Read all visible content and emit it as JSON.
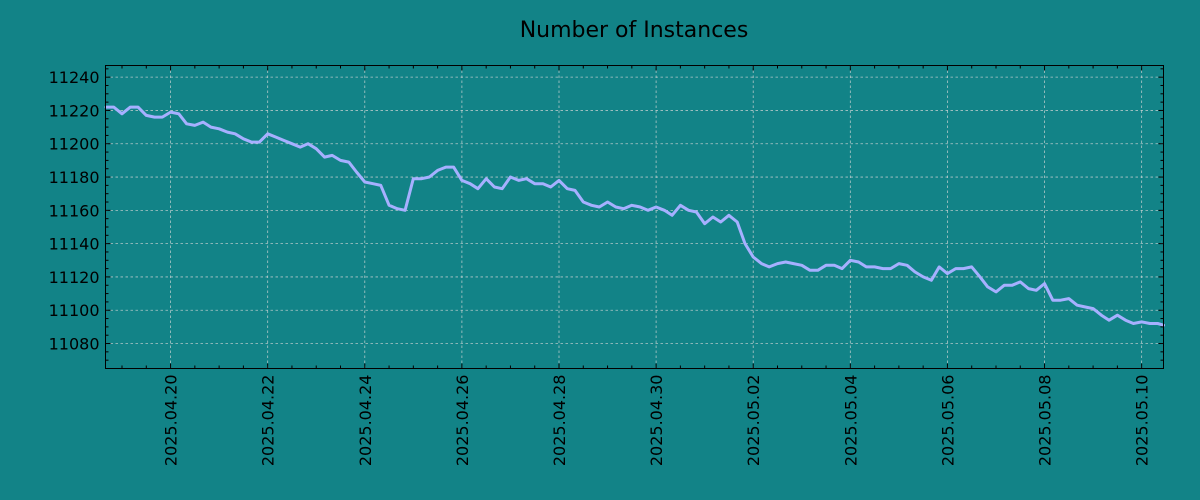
{
  "chart_data": {
    "type": "line",
    "title": "Number of Instances",
    "xlabel": "",
    "ylabel": "",
    "grid": true,
    "x_tick_labels": [
      "2025.04.20",
      "2025.04.22",
      "2025.04.24",
      "2025.04.26",
      "2025.04.28",
      "2025.04.30",
      "2025.05.02",
      "2025.05.04",
      "2025.05.06",
      "2025.05.08",
      "2025.05.10"
    ],
    "y_tick_labels": [
      "11080",
      "11100",
      "11120",
      "11140",
      "11160",
      "11180",
      "11200",
      "11220",
      "11240"
    ],
    "xlim": [
      18.66,
      40.45
    ],
    "ylim": [
      11065,
      11247
    ],
    "series": [
      {
        "color": "#a6b0ff",
        "x": [
          18.67,
          18.83,
          19.0,
          19.17,
          19.33,
          19.5,
          19.67,
          19.83,
          20.0,
          20.17,
          20.33,
          20.5,
          20.67,
          20.83,
          21.0,
          21.17,
          21.33,
          21.5,
          21.67,
          21.83,
          22.0,
          22.17,
          22.33,
          22.5,
          22.67,
          22.83,
          23.0,
          23.17,
          23.33,
          23.5,
          23.67,
          23.83,
          24.0,
          24.17,
          24.33,
          24.5,
          24.67,
          24.83,
          25.0,
          25.17,
          25.33,
          25.5,
          25.67,
          25.83,
          26.0,
          26.17,
          26.33,
          26.5,
          26.67,
          26.83,
          27.0,
          27.17,
          27.33,
          27.5,
          27.67,
          27.83,
          28.0,
          28.17,
          28.33,
          28.5,
          28.67,
          28.83,
          29.0,
          29.17,
          29.33,
          29.5,
          29.67,
          29.83,
          30.0,
          30.17,
          30.33,
          30.5,
          30.67,
          30.83,
          31.0,
          31.17,
          31.33,
          31.5,
          31.67,
          31.83,
          32.0,
          32.17,
          32.33,
          32.5,
          32.67,
          32.83,
          33.0,
          33.17,
          33.33,
          33.5,
          33.67,
          33.83,
          34.0,
          34.17,
          34.33,
          34.5,
          34.67,
          34.83,
          35.0,
          35.17,
          35.33,
          35.5,
          35.67,
          35.83,
          36.0,
          36.17,
          36.33,
          36.5,
          36.67,
          36.83,
          37.0,
          37.17,
          37.33,
          37.5,
          37.67,
          37.83,
          38.0,
          38.17,
          38.33,
          38.5,
          38.67,
          38.83,
          39.0,
          39.17,
          39.33,
          39.5,
          39.67,
          39.83,
          40.0,
          40.17,
          40.33,
          40.45
        ],
        "y": [
          11222,
          11222,
          11218,
          11222,
          11222,
          11217,
          11216,
          11216,
          11219,
          11218,
          11212,
          11211,
          11213,
          11210,
          11209,
          11207,
          11206,
          11203,
          11201,
          11201,
          11206,
          11204,
          11202,
          11200,
          11198,
          11200,
          11197,
          11192,
          11193,
          11190,
          11189,
          11183,
          11177,
          11176,
          11175,
          11163,
          11161,
          11160,
          11179,
          11179,
          11180,
          11184,
          11186,
          11186,
          11178,
          11176,
          11173,
          11179,
          11174,
          11173,
          11180,
          11178,
          11179,
          11176,
          11176,
          11174,
          11178,
          11173,
          11172,
          11165,
          11163,
          11162,
          11165,
          11162,
          11161,
          11163,
          11162,
          11160,
          11162,
          11160,
          11157,
          11163,
          11160,
          11159,
          11152,
          11156,
          11153,
          11157,
          11153,
          11140,
          11132,
          11128,
          11126,
          11128,
          11129,
          11128,
          11127,
          11124,
          11124,
          11127,
          11127,
          11125,
          11130,
          11129,
          11126,
          11126,
          11125,
          11125,
          11128,
          11127,
          11123,
          11120,
          11118,
          11126,
          11122,
          11125,
          11125,
          11126,
          11120,
          11114,
          11111,
          11115,
          11115,
          11117,
          11113,
          11112,
          11116,
          11106,
          11106,
          11107,
          11103,
          11102,
          11101,
          11097,
          11094,
          11097,
          11094,
          11092,
          11093,
          11092,
          11092,
          11091
        ]
      }
    ]
  }
}
